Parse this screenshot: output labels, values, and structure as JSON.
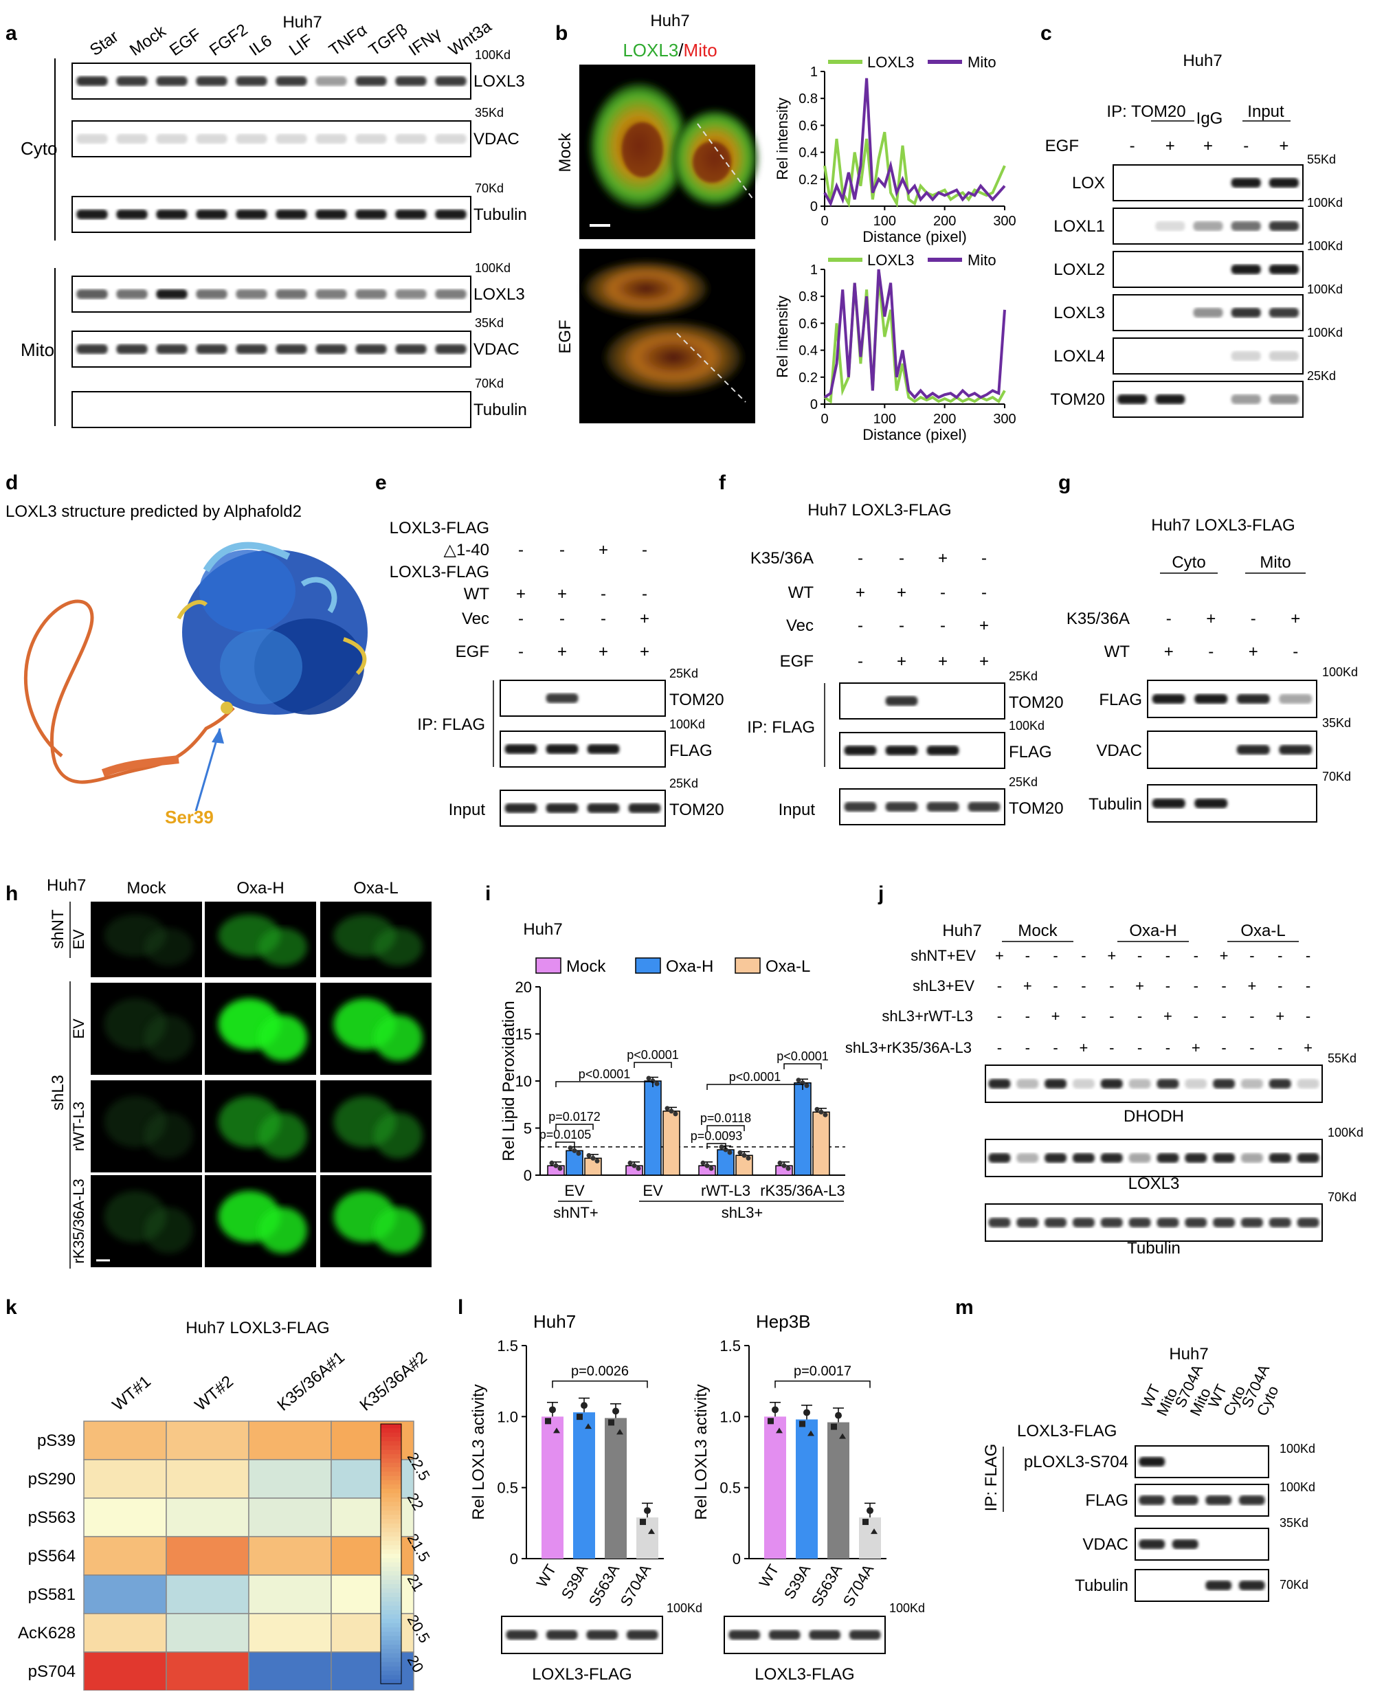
{
  "panels": [
    "a",
    "b",
    "c",
    "d",
    "e",
    "f",
    "g",
    "h",
    "i",
    "j",
    "k",
    "l",
    "m"
  ],
  "a": {
    "cell": "Huh7",
    "lanes": [
      "Star",
      "Mock",
      "EGF",
      "FGF2",
      "IL6",
      "LIF",
      "TNFα",
      "TGFβ",
      "IFNγ",
      "Wnt3a"
    ],
    "cyto_label": "Cyto",
    "mito_label": "Mito",
    "bands": [
      "LOXL3",
      "VDAC",
      "Tubulin"
    ],
    "mw": [
      "100Kd",
      "35Kd",
      "70Kd"
    ]
  },
  "b": {
    "cell": "Huh7",
    "loxl3": "LOXL3",
    "sep": "/",
    "mito": "Mito",
    "rows": [
      "Mock",
      "EGF"
    ],
    "ylabel": "Rel intensity",
    "xlabel": "Distance (pixel)",
    "legend": [
      "LOXL3",
      "Mito"
    ],
    "yticks": [
      "0",
      "0.2",
      "0.4",
      "0.6",
      "0.8",
      "1"
    ],
    "xticks": [
      "0",
      "100",
      "200",
      "300"
    ],
    "colors": {
      "loxl3": "#8dd14a",
      "mito": "#6a2c9e"
    }
  },
  "c": {
    "cell": "Huh7",
    "ip": "IP: TOM20",
    "igg": "IgG",
    "input": "Input",
    "egf": "EGF",
    "signs": [
      "-",
      "+",
      "+",
      "-",
      "+"
    ],
    "bands": [
      "LOX",
      "LOXL1",
      "LOXL2",
      "LOXL3",
      "LOXL4",
      "TOM20"
    ],
    "mw": [
      "55Kd",
      "100Kd",
      "100Kd",
      "100Kd",
      "100Kd",
      "25Kd"
    ]
  },
  "d": {
    "title": "LOXL3 structure predicted by Alphafold2",
    "site": "Ser39"
  },
  "e": {
    "rows": [
      {
        "label": "LOXL3-FLAG",
        "signs": [],
        "top": true
      },
      {
        "label": "△1-40",
        "signs": [
          "-",
          "-",
          "+",
          "-"
        ]
      },
      {
        "label": "LOXL3-FLAG",
        "signs": [],
        "top": true
      },
      {
        "label": "WT",
        "signs": [
          "+",
          "+",
          "-",
          "-"
        ]
      },
      {
        "label": "Vec",
        "signs": [
          "-",
          "-",
          "-",
          "+"
        ]
      },
      {
        "label": "EGF",
        "signs": [
          "-",
          "+",
          "+",
          "+"
        ]
      }
    ],
    "ip": "IP: FLAG",
    "input": "Input",
    "bands": [
      "TOM20",
      "FLAG",
      "TOM20"
    ],
    "mw": [
      "25Kd",
      "100Kd",
      "25Kd"
    ]
  },
  "f": {
    "title": "Huh7 LOXL3-FLAG",
    "rows": [
      {
        "label": "K35/36A",
        "signs": [
          "-",
          "-",
          "+",
          "-"
        ]
      },
      {
        "label": "WT",
        "signs": [
          "+",
          "+",
          "-",
          "-"
        ]
      },
      {
        "label": "Vec",
        "signs": [
          "-",
          "-",
          "-",
          "+"
        ]
      },
      {
        "label": "EGF",
        "signs": [
          "-",
          "+",
          "+",
          "+"
        ]
      }
    ],
    "ip": "IP: FLAG",
    "input": "Input",
    "bands": [
      "TOM20",
      "FLAG",
      "TOM20"
    ],
    "mw": [
      "25Kd",
      "100Kd",
      "25Kd"
    ]
  },
  "g": {
    "title": "Huh7 LOXL3-FLAG",
    "cyto": "Cyto",
    "mito": "Mito",
    "rows": [
      {
        "label": "K35/36A",
        "signs": [
          "-",
          "+",
          "-",
          "+"
        ]
      },
      {
        "label": "WT",
        "signs": [
          "+",
          "-",
          "+",
          "-"
        ]
      }
    ],
    "bands": [
      "FLAG",
      "VDAC",
      "Tubulin"
    ],
    "mw": [
      "100Kd",
      "35Kd",
      "70Kd"
    ]
  },
  "h": {
    "cell": "Huh7",
    "cols": [
      "Mock",
      "Oxa-H",
      "Oxa-L"
    ],
    "group1": "shNT",
    "group2": "shL3",
    "rows": [
      "EV",
      "EV",
      "rWT-L3",
      "rK35/36A-L3"
    ]
  },
  "i": {
    "cell": "Huh7",
    "legend": [
      "Mock",
      "Oxa-H",
      "Oxa-L"
    ],
    "colors": [
      "#e38ef0",
      "#3b8ff0",
      "#f8c89a"
    ],
    "ylabel": "Rel Lipid Peroxidation",
    "yticks": [
      "0",
      "5",
      "10",
      "15",
      "20"
    ],
    "groups": [
      "EV",
      "EV",
      "rWT-L3",
      "rK35/36A-L3"
    ],
    "sub": [
      "shNT+",
      "shL3+"
    ],
    "values": [
      [
        1,
        2.6,
        1.8
      ],
      [
        1,
        10,
        6.8
      ],
      [
        1,
        2.7,
        2.1
      ],
      [
        1,
        9.8,
        6.7
      ]
    ],
    "pvals": [
      "p=0.0105",
      "p=0.0172",
      "p<0.0001",
      "p<0.0001",
      "p=0.0093",
      "p=0.0118",
      "p<0.0001",
      "p<0.0001"
    ]
  },
  "j": {
    "cell": "Huh7",
    "groups": [
      "Mock",
      "Oxa-H",
      "Oxa-L"
    ],
    "rows": [
      {
        "label": "shNT+EV",
        "signs": [
          "+",
          "-",
          "-",
          "-",
          "+",
          "-",
          "-",
          "-",
          "+",
          "-",
          "-",
          "-"
        ]
      },
      {
        "label": "shL3+EV",
        "signs": [
          "-",
          "+",
          "-",
          "-",
          "-",
          "+",
          "-",
          "-",
          "-",
          "+",
          "-",
          "-"
        ]
      },
      {
        "label": "shL3+rWT-L3",
        "signs": [
          "-",
          "-",
          "+",
          "-",
          "-",
          "-",
          "+",
          "-",
          "-",
          "-",
          "+",
          "-"
        ]
      },
      {
        "label": "shL3+rK35/36A-L3",
        "signs": [
          "-",
          "-",
          "-",
          "+",
          "-",
          "-",
          "-",
          "+",
          "-",
          "-",
          "-",
          "+"
        ]
      }
    ],
    "bands": [
      "DHODH",
      "LOXL3",
      "Tubulin"
    ],
    "mw": [
      "55Kd",
      "100Kd",
      "70Kd"
    ]
  },
  "k": {
    "title": "Huh7  LOXL3-FLAG",
    "cols": [
      "WT#1",
      "WT#2",
      "K35/36A#1",
      "K35/36A#2"
    ],
    "rows": [
      "pS39",
      "pS290",
      "pS563",
      "pS564",
      "pS581",
      "AcK628",
      "pS704"
    ],
    "values": [
      [
        22.0,
        21.9,
        22.1,
        22.2
      ],
      [
        21.6,
        21.6,
        21.1,
        20.9
      ],
      [
        21.4,
        21.3,
        21.2,
        21.3
      ],
      [
        22.0,
        22.4,
        22.0,
        22.2
      ],
      [
        20.3,
        20.9,
        21.3,
        21.4
      ],
      [
        21.7,
        21.1,
        21.5,
        21.6
      ],
      [
        22.9,
        22.8,
        19.9,
        19.9
      ]
    ],
    "scale": [
      "22.5",
      "22",
      "21.5",
      "21",
      "20.5",
      "20"
    ],
    "range": [
      19.8,
      23.0
    ]
  },
  "l": {
    "ylabel": "Rel LOXL3 activity",
    "yticks": [
      "0",
      "0.5",
      "1.0",
      "1.5"
    ],
    "cats": [
      "WT",
      "S39A",
      "S563A",
      "S704A"
    ],
    "colors": [
      "#e38ef0",
      "#3b8ff0",
      "#808080",
      "#d9d9d9"
    ],
    "charts": [
      {
        "cell": "Huh7",
        "values": [
          1.0,
          1.03,
          0.99,
          0.29
        ],
        "p": "p=0.0026"
      },
      {
        "cell": "Hep3B",
        "values": [
          1.0,
          0.98,
          0.96,
          0.29
        ],
        "p": "p=0.0017"
      }
    ],
    "band": "LOXL3-FLAG",
    "mw": "100Kd"
  },
  "m": {
    "cell": "Huh7",
    "label": "LOXL3-FLAG",
    "lanes": [
      {
        "a": "WT",
        "b": "Mito"
      },
      {
        "a": "S704A",
        "b": "Mito"
      },
      {
        "a": "WT",
        "b": "Cyto"
      },
      {
        "a": "S704A",
        "b": "Cyto"
      }
    ],
    "ip": "IP: FLAG",
    "bands": [
      "pLOXL3-S704",
      "FLAG",
      "VDAC",
      "Tubulin"
    ],
    "mw": [
      "100Kd",
      "100Kd",
      "35Kd",
      "70Kd"
    ]
  }
}
